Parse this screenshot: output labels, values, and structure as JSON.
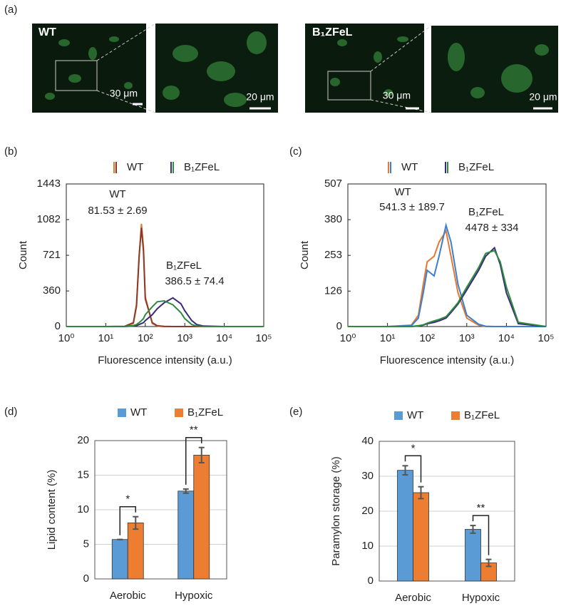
{
  "panel_a": {
    "label": "(a)",
    "images": [
      {
        "label": "WT",
        "scale": "30 μm"
      },
      {
        "scale": "20 μm"
      },
      {
        "label": "B₁ZFeL",
        "scale": "30 μm"
      },
      {
        "scale": "20 μm"
      }
    ]
  },
  "chart_data": [
    {
      "type": "line",
      "panel": "(b)",
      "xscale": "log",
      "xlabel": "Fluorescence intensity (a.u.)",
      "ylabel": "Count",
      "xlim": [
        1,
        100000
      ],
      "ylim": [
        0,
        1443
      ],
      "xticks": [
        {
          "value": 1,
          "label": "10⁰"
        },
        {
          "value": 10,
          "label": "10¹"
        },
        {
          "value": 100,
          "label": "10²"
        },
        {
          "value": 1000,
          "label": "10³"
        },
        {
          "value": 10000,
          "label": "10⁴"
        },
        {
          "value": 100000,
          "label": "10⁵"
        }
      ],
      "yticks": [
        0,
        360,
        721,
        1082,
        1443
      ],
      "annotations": [
        "WT",
        "81.53 ± 2.69",
        "B₁ZFeL",
        "386.5 ± 74.4"
      ],
      "x": [
        1,
        10,
        30,
        50,
        60,
        70,
        80,
        90,
        100,
        150,
        200,
        300,
        500,
        800,
        1000,
        1500,
        2000,
        3000,
        10000,
        100000
      ],
      "series": [
        {
          "name": "WT",
          "color": "#e8772e",
          "values": [
            0,
            0,
            0,
            30,
            200,
            700,
            1040,
            800,
            300,
            30,
            5,
            0,
            0,
            0,
            0,
            0,
            0,
            0,
            0,
            0
          ]
        },
        {
          "name": "WT",
          "color": "#8b3a2a",
          "values": [
            0,
            0,
            2,
            40,
            220,
            720,
            1000,
            760,
            280,
            40,
            8,
            2,
            0,
            0,
            0,
            0,
            0,
            0,
            0,
            0
          ]
        },
        {
          "name": "B₁ZFeL",
          "color": "#3a2a7a",
          "values": [
            0,
            0,
            0,
            5,
            10,
            20,
            30,
            40,
            60,
            120,
            180,
            240,
            290,
            230,
            160,
            60,
            20,
            5,
            0,
            0
          ]
        },
        {
          "name": "B₁ZFeL",
          "color": "#2e8b3e",
          "values": [
            0,
            0,
            2,
            10,
            20,
            40,
            60,
            80,
            120,
            200,
            250,
            260,
            220,
            140,
            80,
            20,
            5,
            1,
            0,
            0
          ]
        }
      ]
    },
    {
      "type": "line",
      "panel": "(c)",
      "xscale": "log",
      "xlabel": "Fluorescence intensity (a.u.)",
      "ylabel": "Count",
      "xlim": [
        1,
        100000
      ],
      "ylim": [
        0,
        507
      ],
      "xticks": [
        {
          "value": 1,
          "label": "10⁰"
        },
        {
          "value": 10,
          "label": "10¹"
        },
        {
          "value": 100,
          "label": "10²"
        },
        {
          "value": 1000,
          "label": "10³"
        },
        {
          "value": 10000,
          "label": "10⁴"
        },
        {
          "value": 100000,
          "label": "10⁵"
        }
      ],
      "yticks": [
        0,
        126,
        253,
        380,
        507
      ],
      "annotations": [
        "WT",
        "541.3 ± 189.7",
        "B₁ZFeL",
        "4478 ± 334"
      ],
      "x": [
        1,
        10,
        40,
        60,
        80,
        100,
        150,
        200,
        300,
        400,
        600,
        1000,
        2000,
        3000,
        5000,
        7000,
        10000,
        20000,
        100000
      ],
      "series": [
        {
          "name": "WT",
          "color": "#e8772e",
          "values": [
            0,
            0,
            5,
            40,
            150,
            230,
            250,
            300,
            340,
            250,
            120,
            30,
            5,
            0,
            0,
            0,
            0,
            0,
            0
          ]
        },
        {
          "name": "WT",
          "color": "#3a7fd0",
          "values": [
            0,
            0,
            3,
            30,
            120,
            200,
            180,
            250,
            360,
            300,
            150,
            40,
            8,
            1,
            0,
            0,
            0,
            0,
            0
          ]
        },
        {
          "name": "B₁ZFeL",
          "color": "#3a2a7a",
          "values": [
            0,
            0,
            0,
            2,
            5,
            10,
            15,
            20,
            30,
            50,
            80,
            130,
            200,
            250,
            280,
            220,
            120,
            10,
            0
          ]
        },
        {
          "name": "B₁ZFeL",
          "color": "#2e8b3e",
          "values": [
            0,
            0,
            0,
            3,
            6,
            12,
            20,
            25,
            35,
            55,
            85,
            140,
            210,
            260,
            270,
            230,
            140,
            15,
            0
          ]
        }
      ]
    },
    {
      "type": "bar",
      "panel": "(d)",
      "ylabel": "Lipid content (%)",
      "grid": true,
      "categories": [
        "Aerobic",
        "Hypoxic"
      ],
      "ylim": [
        0,
        20
      ],
      "yticks": [
        0,
        5,
        10,
        15,
        20
      ],
      "significance": [
        "*",
        "**"
      ],
      "series": [
        {
          "name": "WT",
          "color": "#5b9bd5",
          "values": [
            5.7,
            12.7
          ],
          "errors": [
            0,
            0.3
          ]
        },
        {
          "name": "B₁ZFeL",
          "color": "#ed7d31",
          "values": [
            8.1,
            17.9
          ],
          "errors": [
            0.9,
            1.1
          ]
        }
      ]
    },
    {
      "type": "bar",
      "panel": "(e)",
      "ylabel": "Paramylon storage (%)",
      "grid": true,
      "categories": [
        "Aerobic",
        "Hypoxic"
      ],
      "ylim": [
        0,
        40
      ],
      "yticks": [
        0,
        10,
        20,
        30,
        40
      ],
      "significance": [
        "*",
        "**"
      ],
      "series": [
        {
          "name": "WT",
          "color": "#5b9bd5",
          "values": [
            31.7,
            14.8
          ],
          "errors": [
            1.3,
            1.1
          ]
        },
        {
          "name": "B₁ZFeL",
          "color": "#ed7d31",
          "values": [
            25.3,
            5.2
          ],
          "errors": [
            1.7,
            1.0
          ]
        }
      ]
    }
  ]
}
